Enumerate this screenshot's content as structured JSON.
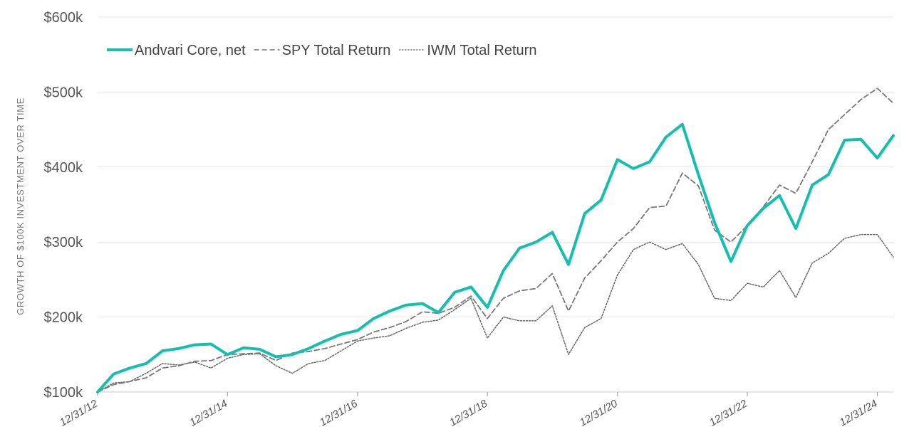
{
  "chart_data": {
    "type": "line",
    "ylabel": "GROWTH OF $100K INVESTMENT OVER TIME",
    "xlabel": "",
    "ylim": [
      100000,
      600000
    ],
    "y_ticks": [
      {
        "value": 100000,
        "label": "$100k"
      },
      {
        "value": 200000,
        "label": "$200k"
      },
      {
        "value": 300000,
        "label": "$300k"
      },
      {
        "value": 400000,
        "label": "$400k"
      },
      {
        "value": 500000,
        "label": "$500k"
      },
      {
        "value": 600000,
        "label": "$600k"
      }
    ],
    "x_range": [
      "12/31/12",
      "3/31/25"
    ],
    "x_ticks": [
      "12/31/12",
      "12/31/14",
      "12/31/16",
      "12/31/18",
      "12/31/20",
      "12/31/22",
      "12/31/24"
    ],
    "grid": "horizontal",
    "legend": "top-left",
    "colors": {
      "andvari": "#14bfae",
      "spy": "#777777",
      "iwm": "#666666",
      "grid": "#e6e6e6",
      "axis": "#cccccc"
    },
    "series": [
      {
        "name": "Andvari Core, net",
        "style": "solid",
        "points": [
          [
            "12/31/12",
            100000
          ],
          [
            "3/31/13",
            124000
          ],
          [
            "6/30/13",
            132000
          ],
          [
            "9/30/13",
            138000
          ],
          [
            "12/31/13",
            155000
          ],
          [
            "3/31/14",
            158000
          ],
          [
            "6/30/14",
            163000
          ],
          [
            "9/30/14",
            164000
          ],
          [
            "12/31/14",
            150000
          ],
          [
            "3/31/15",
            159000
          ],
          [
            "6/30/15",
            157000
          ],
          [
            "9/30/15",
            147000
          ],
          [
            "12/31/15",
            150000
          ],
          [
            "3/31/16",
            158000
          ],
          [
            "6/30/16",
            168000
          ],
          [
            "9/30/16",
            177000
          ],
          [
            "12/31/16",
            182000
          ],
          [
            "3/31/17",
            198000
          ],
          [
            "6/30/17",
            208000
          ],
          [
            "9/30/17",
            216000
          ],
          [
            "12/31/17",
            218000
          ],
          [
            "3/31/18",
            206000
          ],
          [
            "6/30/18",
            233000
          ],
          [
            "9/30/18",
            240000
          ],
          [
            "12/31/18",
            213000
          ],
          [
            "3/31/19",
            262000
          ],
          [
            "6/30/19",
            292000
          ],
          [
            "9/30/19",
            300000
          ],
          [
            "12/31/19",
            313000
          ],
          [
            "3/31/20",
            270000
          ],
          [
            "6/30/20",
            338000
          ],
          [
            "9/30/20",
            356000
          ],
          [
            "12/31/20",
            410000
          ],
          [
            "3/31/21",
            398000
          ],
          [
            "6/30/21",
            407000
          ],
          [
            "9/30/21",
            440000
          ],
          [
            "12/31/21",
            457000
          ],
          [
            "3/31/22",
            390000
          ],
          [
            "6/30/22",
            326000
          ],
          [
            "9/30/22",
            274000
          ],
          [
            "12/31/22",
            322000
          ],
          [
            "3/31/23",
            345000
          ],
          [
            "6/30/23",
            362000
          ],
          [
            "9/30/23",
            318000
          ],
          [
            "12/31/23",
            376000
          ],
          [
            "3/31/24",
            390000
          ],
          [
            "6/30/24",
            436000
          ],
          [
            "9/30/24",
            437000
          ],
          [
            "12/31/24",
            412000
          ],
          [
            "3/31/25",
            442000
          ]
        ]
      },
      {
        "name": "SPY Total Return",
        "style": "dashed",
        "points": [
          [
            "12/31/12",
            100000
          ],
          [
            "3/31/13",
            110000
          ],
          [
            "6/30/13",
            114000
          ],
          [
            "9/30/13",
            119000
          ],
          [
            "12/31/13",
            132000
          ],
          [
            "3/31/14",
            135000
          ],
          [
            "6/30/14",
            141000
          ],
          [
            "9/30/14",
            142000
          ],
          [
            "12/31/14",
            150000
          ],
          [
            "3/31/15",
            151000
          ],
          [
            "6/30/15",
            152000
          ],
          [
            "9/30/15",
            142000
          ],
          [
            "12/31/15",
            152000
          ],
          [
            "3/31/16",
            154000
          ],
          [
            "6/30/16",
            158000
          ],
          [
            "9/30/16",
            164000
          ],
          [
            "12/31/16",
            170000
          ],
          [
            "3/31/17",
            180000
          ],
          [
            "6/30/17",
            186000
          ],
          [
            "9/30/17",
            194000
          ],
          [
            "12/31/17",
            207000
          ],
          [
            "3/31/18",
            205000
          ],
          [
            "6/30/18",
            213000
          ],
          [
            "9/30/18",
            228000
          ],
          [
            "12/31/18",
            198000
          ],
          [
            "3/31/19",
            225000
          ],
          [
            "6/30/19",
            235000
          ],
          [
            "9/30/19",
            238000
          ],
          [
            "12/31/19",
            258000
          ],
          [
            "3/31/20",
            208000
          ],
          [
            "6/30/20",
            252000
          ],
          [
            "9/30/20",
            275000
          ],
          [
            "12/31/20",
            300000
          ],
          [
            "3/31/21",
            318000
          ],
          [
            "6/30/21",
            346000
          ],
          [
            "9/30/21",
            348000
          ],
          [
            "12/31/21",
            392000
          ],
          [
            "3/31/22",
            375000
          ],
          [
            "6/30/22",
            316000
          ],
          [
            "9/30/22",
            300000
          ],
          [
            "12/31/22",
            322000
          ],
          [
            "3/31/23",
            347000
          ],
          [
            "6/30/23",
            376000
          ],
          [
            "9/30/23",
            365000
          ],
          [
            "12/31/23",
            407000
          ],
          [
            "3/31/24",
            450000
          ],
          [
            "6/30/24",
            470000
          ],
          [
            "9/30/24",
            490000
          ],
          [
            "12/31/24",
            505000
          ],
          [
            "3/31/25",
            485000
          ]
        ]
      },
      {
        "name": "IWM Total Return",
        "style": "dotted",
        "points": [
          [
            "12/31/12",
            100000
          ],
          [
            "3/31/13",
            112000
          ],
          [
            "6/30/13",
            114000
          ],
          [
            "9/30/13",
            125000
          ],
          [
            "12/31/13",
            138000
          ],
          [
            "3/31/14",
            136000
          ],
          [
            "6/30/14",
            140000
          ],
          [
            "9/30/14",
            132000
          ],
          [
            "12/31/14",
            145000
          ],
          [
            "3/31/15",
            150000
          ],
          [
            "6/30/15",
            151000
          ],
          [
            "9/30/15",
            135000
          ],
          [
            "12/31/15",
            125000
          ],
          [
            "3/31/16",
            138000
          ],
          [
            "6/30/16",
            142000
          ],
          [
            "9/30/16",
            155000
          ],
          [
            "12/31/16",
            168000
          ],
          [
            "3/31/17",
            172000
          ],
          [
            "6/30/17",
            175000
          ],
          [
            "9/30/17",
            185000
          ],
          [
            "12/31/17",
            193000
          ],
          [
            "3/31/18",
            196000
          ],
          [
            "6/30/18",
            210000
          ],
          [
            "9/30/18",
            225000
          ],
          [
            "12/31/18",
            172000
          ],
          [
            "3/31/19",
            200000
          ],
          [
            "6/30/19",
            195000
          ],
          [
            "9/30/19",
            195000
          ],
          [
            "12/31/19",
            215000
          ],
          [
            "3/31/20",
            150000
          ],
          [
            "6/30/20",
            186000
          ],
          [
            "9/30/20",
            198000
          ],
          [
            "12/31/20",
            256000
          ],
          [
            "3/31/21",
            290000
          ],
          [
            "6/30/21",
            300000
          ],
          [
            "9/30/21",
            290000
          ],
          [
            "12/31/21",
            298000
          ],
          [
            "3/31/22",
            270000
          ],
          [
            "6/30/22",
            225000
          ],
          [
            "9/30/22",
            222000
          ],
          [
            "12/31/22",
            245000
          ],
          [
            "3/31/23",
            240000
          ],
          [
            "6/30/23",
            262000
          ],
          [
            "9/30/23",
            226000
          ],
          [
            "12/31/23",
            272000
          ],
          [
            "3/31/24",
            285000
          ],
          [
            "6/30/24",
            305000
          ],
          [
            "9/30/24",
            310000
          ],
          [
            "12/31/24",
            310000
          ],
          [
            "3/31/25",
            280000
          ]
        ]
      }
    ]
  }
}
